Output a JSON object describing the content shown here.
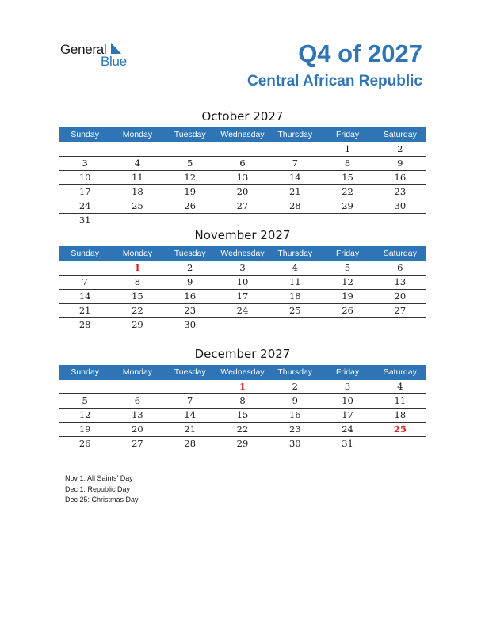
{
  "logo": {
    "general": "General",
    "blue": "Blue"
  },
  "header": {
    "title": "Q4 of 2027",
    "country": "Central African Republic"
  },
  "weekdays": [
    "Sunday",
    "Monday",
    "Tuesday",
    "Wednesday",
    "Thursday",
    "Friday",
    "Saturday"
  ],
  "colors": {
    "accent": "#2f74b5",
    "holiday": "#e0191c"
  },
  "months": [
    {
      "title": "October 2027",
      "weeks": [
        [
          "",
          "",
          "",
          "",
          "",
          "1",
          "2"
        ],
        [
          "3",
          "4",
          "5",
          "6",
          "7",
          "8",
          "9"
        ],
        [
          "10",
          "11",
          "12",
          "13",
          "14",
          "15",
          "16"
        ],
        [
          "17",
          "18",
          "19",
          "20",
          "21",
          "22",
          "23"
        ],
        [
          "24",
          "25",
          "26",
          "27",
          "28",
          "29",
          "30"
        ],
        [
          "31",
          "",
          "",
          "",
          "",
          "",
          ""
        ]
      ],
      "holidays": []
    },
    {
      "title": "November 2027",
      "weeks": [
        [
          "",
          "1",
          "2",
          "3",
          "4",
          "5",
          "6"
        ],
        [
          "7",
          "8",
          "9",
          "10",
          "11",
          "12",
          "13"
        ],
        [
          "14",
          "15",
          "16",
          "17",
          "18",
          "19",
          "20"
        ],
        [
          "21",
          "22",
          "23",
          "24",
          "25",
          "26",
          "27"
        ],
        [
          "28",
          "29",
          "30",
          "",
          "",
          "",
          ""
        ]
      ],
      "holidays": [
        "1"
      ]
    },
    {
      "title": "December 2027",
      "weeks": [
        [
          "",
          "",
          "",
          "1",
          "2",
          "3",
          "4"
        ],
        [
          "5",
          "6",
          "7",
          "8",
          "9",
          "10",
          "11"
        ],
        [
          "12",
          "13",
          "14",
          "15",
          "16",
          "17",
          "18"
        ],
        [
          "19",
          "20",
          "21",
          "22",
          "23",
          "24",
          "25"
        ],
        [
          "26",
          "27",
          "28",
          "29",
          "30",
          "31",
          ""
        ]
      ],
      "holidays": [
        "1",
        "25"
      ]
    }
  ],
  "notes": [
    "Nov 1: All Saints’ Day",
    "Dec 1: Republic Day",
    "Dec 25: Christmas Day"
  ]
}
